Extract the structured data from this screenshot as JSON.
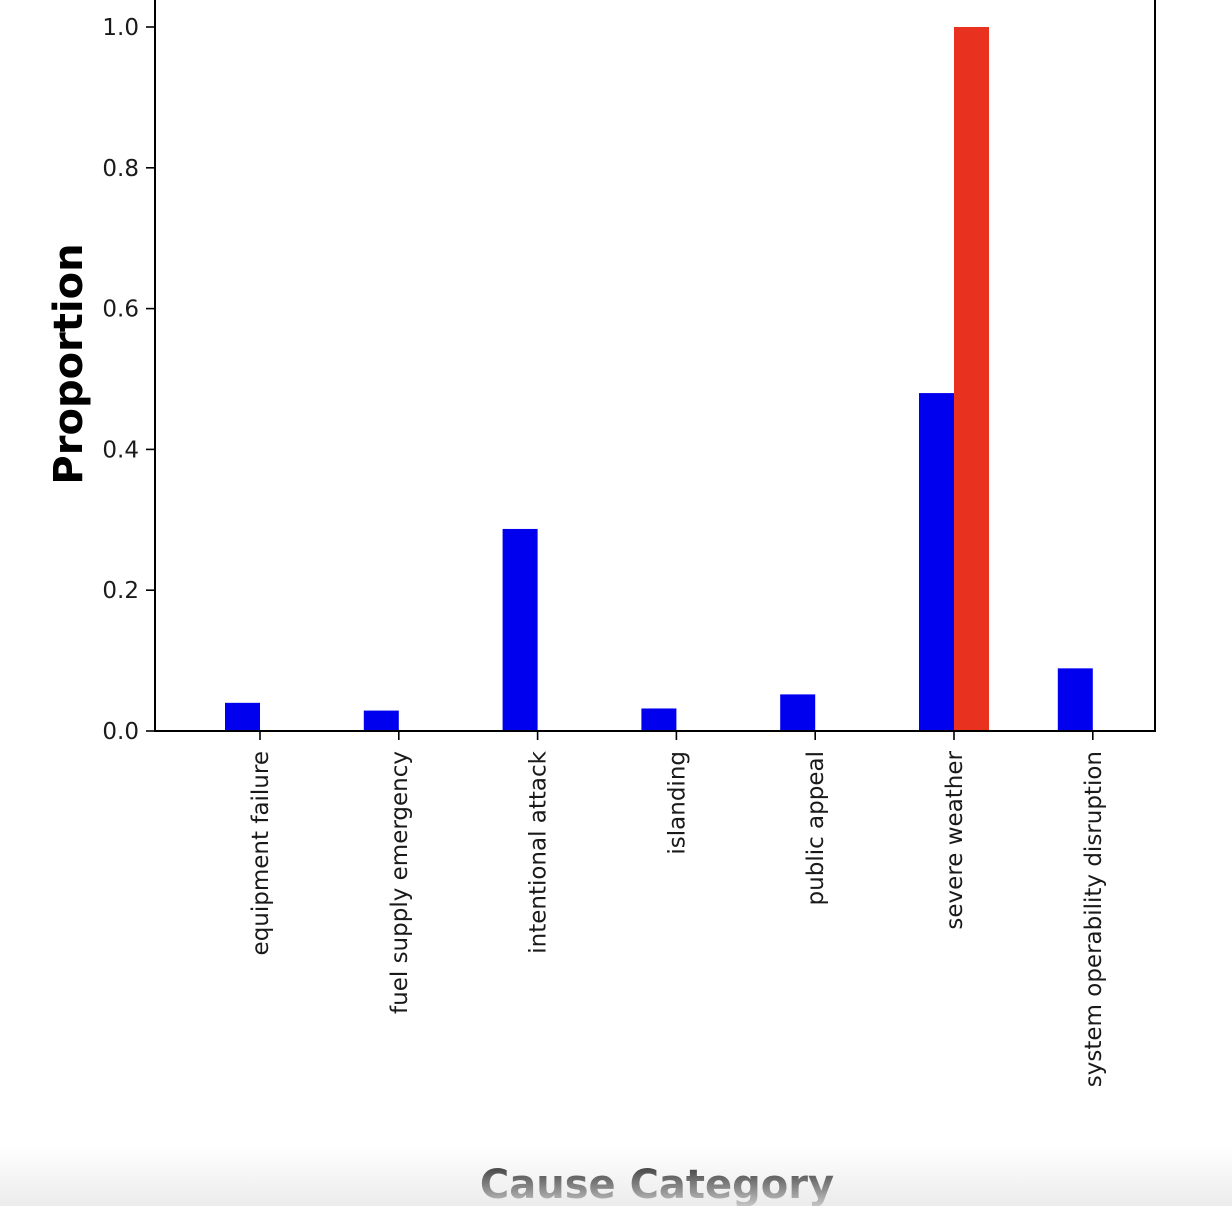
{
  "chart_data": {
    "type": "bar",
    "title": "",
    "xlabel": "Cause Category",
    "ylabel": "Proportion",
    "categories": [
      "equipment failure",
      "fuel supply emergency",
      "intentional attack",
      "islanding",
      "public appeal",
      "severe weather",
      "system operability disruption"
    ],
    "series": [
      {
        "color": "#0000ee",
        "values": [
          0.04,
          0.029,
          0.287,
          0.032,
          0.052,
          0.48,
          0.089
        ]
      },
      {
        "color": "#e8321f",
        "values": [
          0,
          0,
          0,
          0,
          0,
          1.0,
          0
        ]
      }
    ],
    "yticks": [
      "0.0",
      "0.2",
      "0.4",
      "0.6",
      "0.8",
      "1.0"
    ],
    "ytick_values": [
      0,
      0.2,
      0.4,
      0.6,
      0.8,
      1.0
    ],
    "ylim": [
      0,
      1.0
    ],
    "grid": false,
    "legend": "none"
  }
}
